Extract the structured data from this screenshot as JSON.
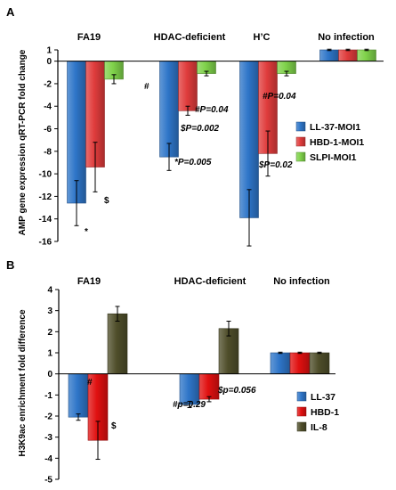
{
  "chart_data": [
    {
      "panel_label": "A",
      "type": "bar",
      "ylabel": "AMP gene expression qRT-PCR fold change",
      "ylim": [
        -16,
        1
      ],
      "yticks": [
        1,
        0,
        -2,
        -4,
        -6,
        -8,
        -10,
        -12,
        -14,
        -16
      ],
      "categories": [
        "FA19",
        "HDAC-deficient",
        "H’C",
        "No infection"
      ],
      "series": [
        {
          "name": "LL-37-MOI1",
          "color": "#2e75c8",
          "values": [
            -12.6,
            -8.5,
            -13.9,
            1.0
          ],
          "errors": [
            2.0,
            1.2,
            2.5,
            0.06
          ]
        },
        {
          "name": "HBD-1-MOI1",
          "color": "#e03c3c",
          "values": [
            -9.4,
            -4.4,
            -8.2,
            1.0
          ],
          "errors": [
            2.2,
            0.4,
            2.0,
            0.06
          ]
        },
        {
          "name": "SLPI-MOI1",
          "color": "#7fd24a",
          "values": [
            -1.6,
            -1.1,
            -1.1,
            1.0
          ],
          "errors": [
            0.4,
            0.2,
            0.2,
            0.06
          ]
        }
      ],
      "legend_position": "right",
      "annotations": [
        {
          "text": "*",
          "style": "normal"
        },
        {
          "text": "$",
          "style": "normal"
        },
        {
          "text": "#",
          "style": "normal"
        },
        {
          "text": "#P=0.04",
          "style": "italic"
        },
        {
          "text": "$P=0.002",
          "style": "italic"
        },
        {
          "text": "*P=0.005",
          "style": "italic"
        },
        {
          "text": "#P=0.04",
          "style": "italic"
        },
        {
          "text": "$P=0.02",
          "style": "italic"
        }
      ]
    },
    {
      "panel_label": "B",
      "type": "bar",
      "ylabel": "H3K9ac enrichment  fold difference",
      "ylim": [
        -5,
        4
      ],
      "yticks": [
        4,
        3,
        2,
        1,
        0,
        -1,
        -2,
        -3,
        -4,
        -5
      ],
      "categories": [
        "FA19",
        "HDAC-deficient",
        "No infection"
      ],
      "series": [
        {
          "name": "LL-37",
          "color": "#2e75c8",
          "values": [
            -2.05,
            -1.45,
            1.0
          ],
          "errors": [
            0.15,
            0.15,
            0.03
          ]
        },
        {
          "name": "HBD-1",
          "color": "#e01010",
          "values": [
            -3.15,
            -1.2,
            1.0
          ],
          "errors": [
            0.9,
            0.12,
            0.03
          ]
        },
        {
          "name": "IL-8",
          "color": "#4f4e2a",
          "values": [
            2.85,
            2.15,
            1.0
          ],
          "errors": [
            0.35,
            0.35,
            0.03
          ]
        }
      ],
      "legend_position": "right",
      "annotations": [
        {
          "text": "#",
          "style": "normal"
        },
        {
          "text": "$",
          "style": "normal"
        },
        {
          "text": "$p=0.056",
          "style": "italic"
        },
        {
          "text": "#p=0.29",
          "style": "italic"
        }
      ]
    }
  ]
}
